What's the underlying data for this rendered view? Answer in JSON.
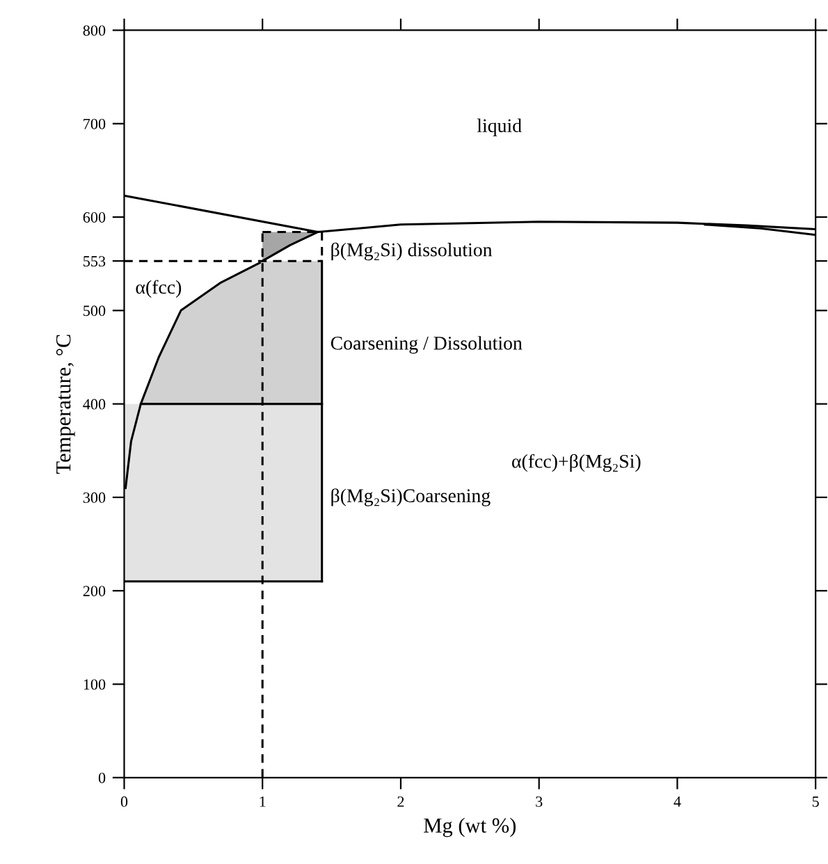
{
  "chart_data": {
    "type": "line",
    "xlabel": "Mg (wt %)",
    "ylabel": "Temperature, °C",
    "xlim": [
      0,
      5
    ],
    "xticks": [
      0,
      1,
      2,
      3,
      4,
      5
    ],
    "ylim": [
      0,
      800
    ],
    "yticks": [
      0,
      100,
      200,
      300,
      400,
      500,
      553,
      600,
      700,
      800
    ],
    "grid": false,
    "legend": false,
    "marker": "none",
    "series": [
      {
        "color": "#000000",
        "line_style": "solid",
        "x": [
          0,
          1.43
        ],
        "values": [
          210,
          210
        ],
        "lower": [
          210,
          210
        ],
        "upper": [
          400,
          400
        ]
      },
      {
        "color": "#000000",
        "line_style": "solid",
        "x": [
          0.12,
          0.25,
          0.41,
          0.7,
          1.0,
          1.43
        ],
        "values": [
          400,
          400,
          400,
          400,
          400,
          400
        ],
        "lower": [
          400,
          400,
          400,
          400,
          400,
          400
        ],
        "upper": [
          400,
          450,
          500,
          530,
          553,
          553
        ]
      },
      {
        "color": "#000000",
        "line_style": "solid",
        "x": [
          1.0,
          1.2,
          1.4
        ],
        "values": [
          553,
          570,
          584
        ],
        "lower": [
          553,
          570,
          584
        ],
        "upper": [
          584,
          584,
          584
        ]
      },
      {
        "color": "#000000",
        "line_style": "solid",
        "x": [
          0,
          1.4,
          2,
          3,
          4,
          4.5,
          5
        ],
        "values": [
          623,
          584,
          592,
          595,
          594,
          591,
          587
        ]
      },
      {
        "color": "#000000",
        "line_style": "solid",
        "x": [
          4.2,
          4.6,
          5
        ],
        "values": [
          592,
          588,
          581
        ]
      },
      {
        "color": "#000000",
        "line_style": "solid",
        "x": [
          0.01,
          0.05,
          0.12,
          0.25,
          0.41,
          0.7,
          0.98
        ],
        "values": [
          310,
          360,
          400,
          450,
          500,
          530,
          551
        ]
      },
      {
        "color": "#000000",
        "line_style": "solid",
        "x": [
          1.43,
          1.43
        ],
        "values": [
          210,
          553
        ]
      },
      {
        "color": "#000000",
        "line_style": "dashed",
        "x": [
          0,
          1.43
        ],
        "values": [
          553,
          553
        ]
      },
      {
        "color": "#000000",
        "line_style": "dashed",
        "x": [
          1,
          1
        ],
        "values": [
          0,
          584
        ]
      },
      {
        "color": "#000000",
        "line_style": "dashed",
        "x": [
          1,
          1.43,
          1.43
        ],
        "values": [
          584,
          584,
          553
        ]
      }
    ],
    "annotations": [
      "liquid",
      "α(fcc)",
      "β(Mg₂Si) dissolution",
      "Coarsening / Dissolution",
      "α(fcc)+β(Mg₂Si)",
      "β(Mg₂Si)Coarsening"
    ]
  }
}
